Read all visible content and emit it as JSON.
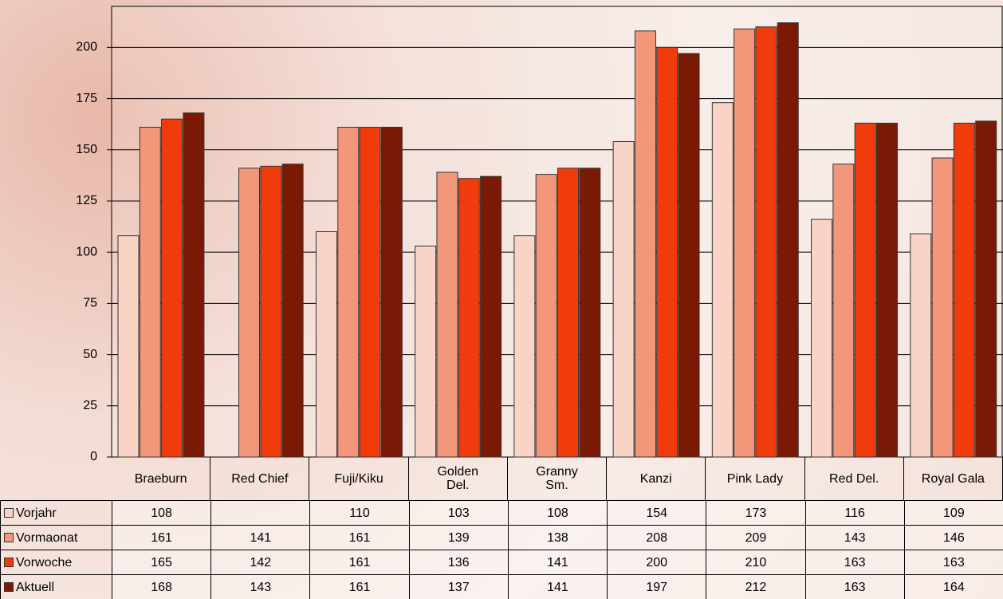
{
  "chart_data": {
    "type": "bar",
    "categories": [
      "Braeburn",
      "Red Chief",
      "Fuji/Kiku",
      "Golden\nDel.",
      "Granny\nSm.",
      "Kanzi",
      "Pink Lady",
      "Red Del.",
      "Royal Gala"
    ],
    "series": [
      {
        "name": "Vorjahr",
        "color": "#f9d3c6",
        "values": [
          108,
          null,
          110,
          103,
          108,
          154,
          173,
          116,
          109
        ]
      },
      {
        "name": "Vormaonat",
        "color": "#f2977a",
        "values": [
          161,
          141,
          161,
          139,
          138,
          208,
          209,
          143,
          146
        ]
      },
      {
        "name": "Vorwoche",
        "color": "#f03c0c",
        "values": [
          165,
          142,
          161,
          136,
          141,
          200,
          210,
          163,
          163
        ]
      },
      {
        "name": "Aktuell",
        "color": "#7a1a05",
        "values": [
          168,
          143,
          161,
          137,
          141,
          197,
          212,
          163,
          164
        ]
      }
    ],
    "ylim": [
      0,
      220
    ],
    "yticks": [
      0,
      25,
      50,
      75,
      100,
      125,
      150,
      175,
      200
    ],
    "grid": true,
    "data_table": true
  }
}
